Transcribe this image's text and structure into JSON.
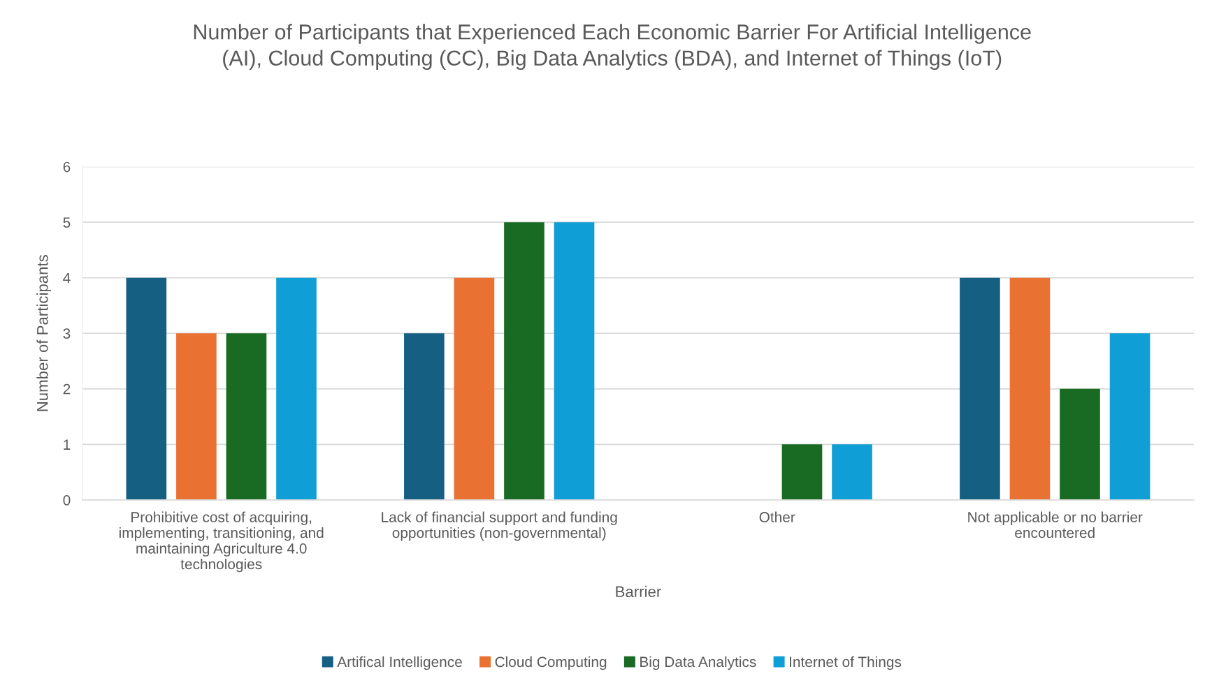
{
  "chart_data": {
    "type": "bar",
    "title": "Number of Participants that Experienced Each Economic Barrier For Artificial Intelligence (AI), Cloud Computing (CC), Big Data Analytics (BDA), and Internet of Things (IoT)",
    "xlabel": "Barrier",
    "ylabel": "Number of Participants",
    "categories": [
      "Prohibitive cost of acquiring, implementing, transitioning, and maintaining Agriculture 4.0 technologies",
      "Lack of financial support and funding opportunities (non-governmental)",
      "Other",
      "Not applicable or no barrier encountered"
    ],
    "series": [
      {
        "name": "Artifical Intelligence",
        "color": "#156082",
        "values": [
          4,
          3,
          0,
          4
        ]
      },
      {
        "name": "Cloud Computing",
        "color": "#e97132",
        "values": [
          3,
          4,
          0,
          4
        ]
      },
      {
        "name": "Big Data Analytics",
        "color": "#196b24",
        "values": [
          3,
          5,
          1,
          2
        ]
      },
      {
        "name": "Internet of Things",
        "color": "#0f9ed5",
        "values": [
          4,
          5,
          1,
          3
        ]
      }
    ],
    "ylim": [
      0,
      6
    ],
    "yticks": [
      0,
      1,
      2,
      3,
      4,
      5,
      6
    ],
    "grid": "y",
    "legend": "bottom"
  }
}
